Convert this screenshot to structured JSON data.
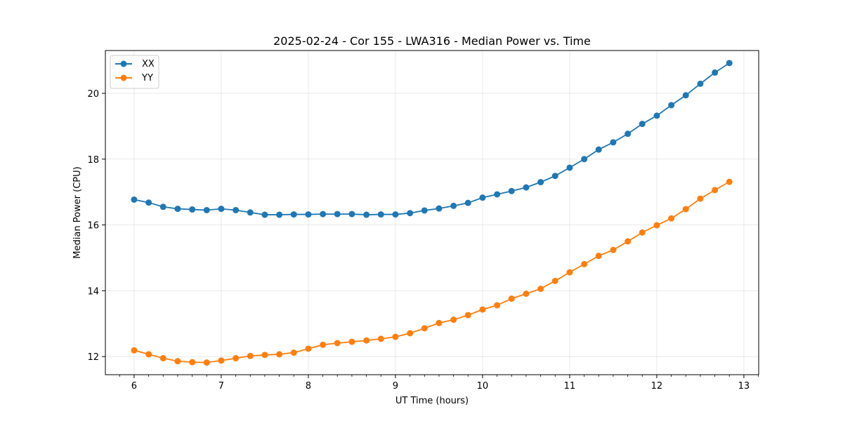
{
  "chart_data": {
    "type": "line",
    "title": "2025-02-24 - Cor 155 - LWA316 - Median Power vs. Time",
    "xlabel": "UT Time (hours)",
    "ylabel": "Median Power (CPU)",
    "xlim": [
      5.67,
      13.17
    ],
    "ylim": [
      11.45,
      21.3
    ],
    "xticks": [
      6,
      7,
      8,
      9,
      10,
      11,
      12,
      13
    ],
    "xtick_labels": [
      "6",
      "7",
      "8",
      "9",
      "10",
      "11",
      "12",
      "13"
    ],
    "yticks": [
      12,
      14,
      16,
      18,
      20
    ],
    "ytick_labels": [
      "12",
      "14",
      "16",
      "18",
      "20"
    ],
    "grid": true,
    "legend_location": "top-left",
    "x": [
      6.0,
      6.167,
      6.333,
      6.5,
      6.667,
      6.833,
      7.0,
      7.167,
      7.333,
      7.5,
      7.667,
      7.833,
      8.0,
      8.167,
      8.333,
      8.5,
      8.667,
      8.833,
      9.0,
      9.167,
      9.333,
      9.5,
      9.667,
      9.833,
      10.0,
      10.167,
      10.333,
      10.5,
      10.667,
      10.833,
      11.0,
      11.167,
      11.333,
      11.5,
      11.667,
      11.833,
      12.0,
      12.167,
      12.333,
      12.5,
      12.667,
      12.833
    ],
    "series": [
      {
        "name": "XX",
        "color": "#1f77b4",
        "values": [
          16.77,
          16.68,
          16.55,
          16.49,
          16.47,
          16.45,
          16.49,
          16.45,
          16.38,
          16.31,
          16.31,
          16.32,
          16.32,
          16.33,
          16.33,
          16.33,
          16.31,
          16.32,
          16.32,
          16.36,
          16.44,
          16.5,
          16.58,
          16.67,
          16.83,
          16.93,
          17.03,
          17.14,
          17.3,
          17.49,
          17.74,
          18.0,
          18.29,
          18.51,
          18.77,
          19.07,
          19.32,
          19.64,
          19.94,
          20.29,
          20.63,
          20.92
        ]
      },
      {
        "name": "YY",
        "color": "#ff7f0e",
        "values": [
          12.19,
          12.07,
          11.95,
          11.86,
          11.83,
          11.82,
          11.88,
          11.95,
          12.02,
          12.05,
          12.07,
          12.12,
          12.24,
          12.36,
          12.41,
          12.45,
          12.49,
          12.54,
          12.6,
          12.71,
          12.86,
          13.02,
          13.12,
          13.26,
          13.43,
          13.56,
          13.76,
          13.91,
          14.06,
          14.3,
          14.56,
          14.81,
          15.06,
          15.24,
          15.5,
          15.77,
          15.99,
          16.2,
          16.48,
          16.8,
          17.06,
          17.31
        ]
      }
    ]
  }
}
